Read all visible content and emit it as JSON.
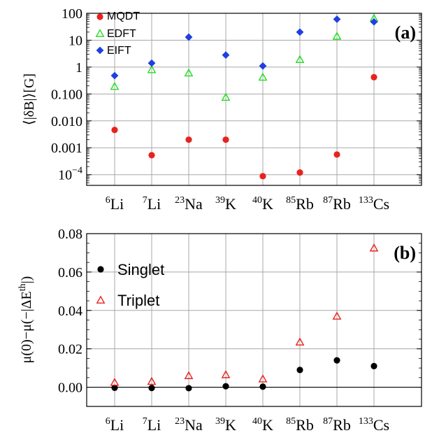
{
  "chart_data": [
    {
      "type": "scatter",
      "panel_label": "(a)",
      "ylabel": "⟨|δB|⟩[G]",
      "yscale": "log",
      "ylim": [
        4e-05,
        100
      ],
      "grid": true,
      "legend_position": "top-left",
      "categories": [
        {
          "sup": "6",
          "el": "Li"
        },
        {
          "sup": "7",
          "el": "Li"
        },
        {
          "sup": "23",
          "el": "Na"
        },
        {
          "sup": "39",
          "el": "K"
        },
        {
          "sup": "40",
          "el": "K"
        },
        {
          "sup": "85",
          "el": "Rb"
        },
        {
          "sup": "87",
          "el": "Rb"
        },
        {
          "sup": "133",
          "el": "Cs"
        }
      ],
      "yticks": [
        {
          "value": 100,
          "label": "100"
        },
        {
          "value": 10,
          "label": "10"
        },
        {
          "value": 1,
          "label": "1"
        },
        {
          "value": 0.1,
          "label": "0.100"
        },
        {
          "value": 0.01,
          "label": "0.010"
        },
        {
          "value": 0.001,
          "label": "0.001"
        },
        {
          "value": 0.0001,
          "label": "10",
          "sup": "−4"
        }
      ],
      "series": [
        {
          "name": "MQDT",
          "marker": "circle",
          "color": "#e8231f",
          "values": [
            0.0046,
            0.00053,
            0.002,
            0.002,
            8.8e-05,
            0.00012,
            0.00056,
            0.42
          ]
        },
        {
          "name": "EDFT",
          "marker": "triangle-open",
          "color": "#22dd22",
          "values": [
            0.19,
            0.8,
            0.6,
            0.075,
            0.42,
            1.9,
            14,
            65
          ]
        },
        {
          "name": "EIFT",
          "marker": "diamond",
          "color": "#1f3fe0",
          "values": [
            0.48,
            1.4,
            13,
            2.8,
            1.1,
            20,
            60,
            48
          ]
        }
      ]
    },
    {
      "type": "scatter",
      "panel_label": "(b)",
      "ylabel": "μ(0)−μ(−|ΔE",
      "ylabel_sup": "th",
      "ylabel_end": "|)",
      "ylim": [
        -0.01,
        0.08
      ],
      "grid": true,
      "legend_position": "top-left",
      "categories": [
        {
          "sup": "6",
          "el": "Li"
        },
        {
          "sup": "7",
          "el": "Li"
        },
        {
          "sup": "23",
          "el": "Na"
        },
        {
          "sup": "39",
          "el": "K"
        },
        {
          "sup": "40",
          "el": "K"
        },
        {
          "sup": "85",
          "el": "Rb"
        },
        {
          "sup": "87",
          "el": "Rb"
        },
        {
          "sup": "133",
          "el": "Cs"
        }
      ],
      "yticks": [
        {
          "value": 0.0,
          "label": "0.00"
        },
        {
          "value": 0.02,
          "label": "0.02"
        },
        {
          "value": 0.04,
          "label": "0.04"
        },
        {
          "value": 0.06,
          "label": "0.06"
        },
        {
          "value": 0.08,
          "label": "0.08"
        }
      ],
      "series": [
        {
          "name": "Singlet",
          "marker": "circle",
          "color": "#000000",
          "values": [
            -0.0003,
            -0.0004,
            -0.0005,
            0.0005,
            0.0003,
            0.009,
            0.014,
            0.011
          ]
        },
        {
          "name": "Triplet",
          "marker": "triangle-open",
          "color": "#e8231f",
          "values": [
            0.0025,
            0.003,
            0.006,
            0.0065,
            0.0043,
            0.0235,
            0.037,
            0.0725
          ]
        }
      ]
    }
  ]
}
